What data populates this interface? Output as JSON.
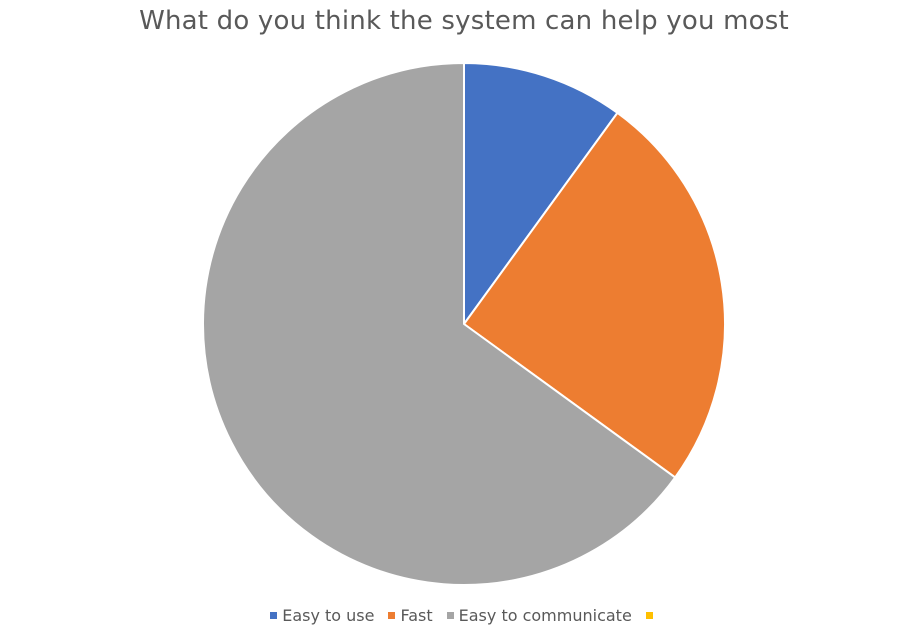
{
  "chart_data": {
    "type": "pie",
    "title": "What do you think the system can help you most",
    "categories": [
      "Easy to use",
      "Fast",
      "Easy to communicate",
      ""
    ],
    "values": [
      10,
      25,
      65,
      0
    ],
    "colors": [
      "#4472C4",
      "#ED7D31",
      "#A5A5A5",
      "#FFC000"
    ],
    "legend_position": "bottom",
    "start_angle_deg": 0,
    "direction": "clockwise"
  }
}
